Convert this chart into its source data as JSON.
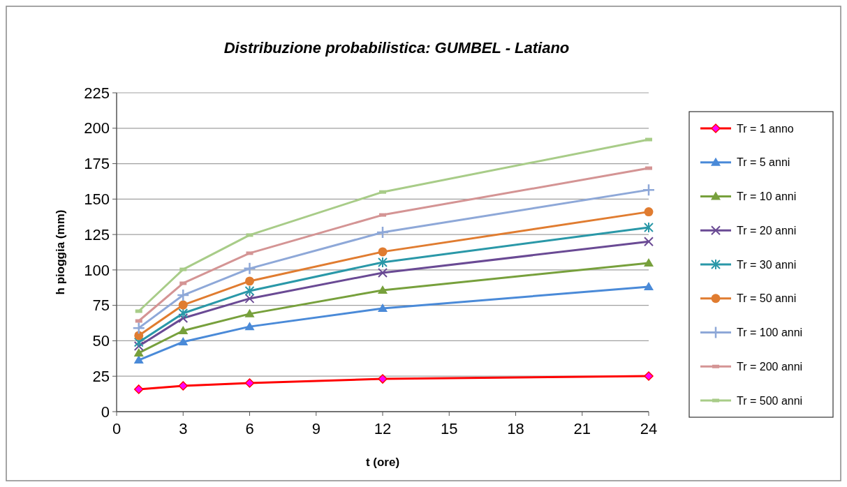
{
  "chart_data": {
    "type": "line",
    "title": "Distribuzione probabilistica:  GUMBEL - Latiano",
    "xlabel": "t (ore)",
    "ylabel": "h pioggia (mm)",
    "x": [
      1,
      3,
      6,
      12,
      24
    ],
    "xlim": [
      0,
      24
    ],
    "xticks": [
      0,
      3,
      6,
      9,
      12,
      15,
      18,
      21,
      24
    ],
    "ylim": [
      0,
      225
    ],
    "yticks": [
      0,
      25,
      50,
      75,
      100,
      125,
      150,
      175,
      200,
      225
    ],
    "grid": "y",
    "legend": "right",
    "line_style": "solid",
    "series": [
      {
        "name": "Tr = 1 anno",
        "color": "#ff0000",
        "marker": "diamond",
        "values": [
          15.8,
          18.2,
          20.2,
          23.1,
          25.1
        ]
      },
      {
        "name": "Tr = 5 anni",
        "color": "#4a8ad8",
        "marker": "triangle",
        "values": [
          36.4,
          49.2,
          60,
          72.9,
          88.1
        ]
      },
      {
        "name": "Tr = 10 anni",
        "color": "#77a03c",
        "marker": "triangle",
        "values": [
          41.4,
          57.1,
          69,
          85.7,
          104.9
        ]
      },
      {
        "name": "Tr = 20 anni",
        "color": "#6a4a94",
        "marker": "x",
        "values": [
          46.3,
          66,
          79.8,
          98,
          120
        ]
      },
      {
        "name": "Tr = 30 anni",
        "color": "#2a98a8",
        "marker": "cross",
        "values": [
          49,
          69.4,
          85.2,
          105.4,
          130
        ]
      },
      {
        "name": "Tr = 50 anni",
        "color": "#e07c30",
        "marker": "circle",
        "values": [
          53.7,
          75.3,
          92.1,
          112.8,
          141
        ]
      },
      {
        "name": "Tr = 100 anni",
        "color": "#8ea8d8",
        "marker": "plus",
        "values": [
          59,
          82.2,
          101,
          126.5,
          156.5
        ]
      },
      {
        "name": "Tr = 200 anni",
        "color": "#d49494",
        "marker": "square",
        "values": [
          64,
          90.6,
          111.8,
          138.8,
          171.8
        ]
      },
      {
        "name": "Tr = 500 anni",
        "color": "#a8cc88",
        "marker": "square",
        "values": [
          70.9,
          100.4,
          124.6,
          155,
          192
        ]
      }
    ]
  }
}
